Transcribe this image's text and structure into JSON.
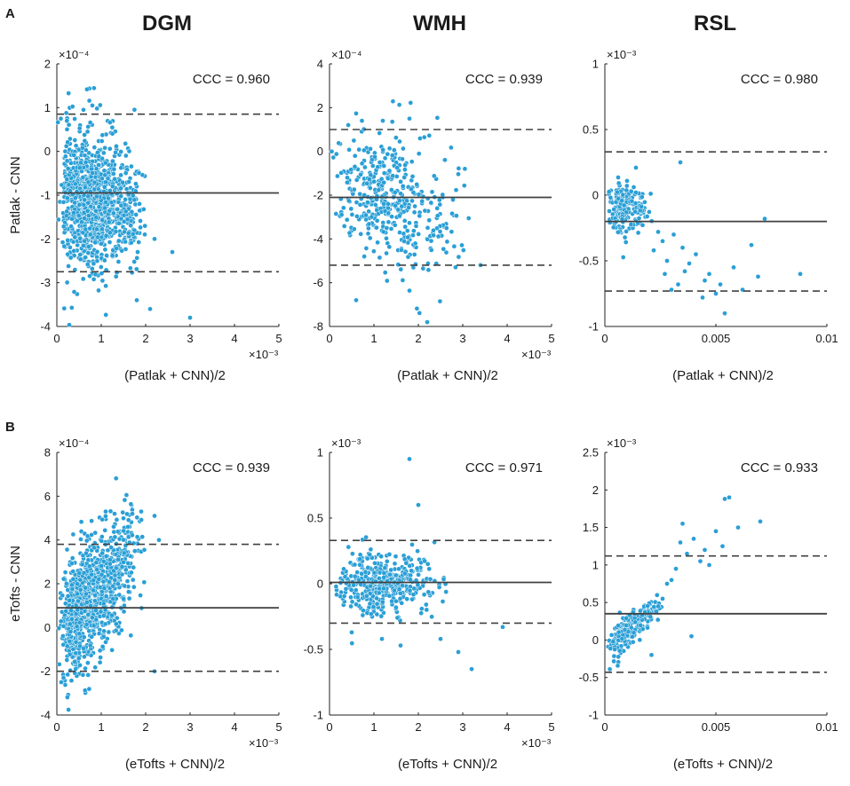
{
  "figure": {
    "columns": [
      "DGM",
      "WMH",
      "RSL"
    ],
    "rows": [
      "A",
      "B"
    ],
    "colors": {
      "point": "#2a9fd6",
      "point_edge": "#ffffff",
      "mean_line": "#404040",
      "limit_line": "#404040",
      "axis": "#222222"
    }
  },
  "chart_data": [
    {
      "id": "A-DGM",
      "row": "A",
      "column": "DGM",
      "type": "scatter",
      "title": "CCC = 0.960",
      "xlabel": "(Patlak + CNN)/2",
      "ylabel": "Patlak - CNN",
      "x_exponent": "×10⁻³",
      "y_exponent": "×10⁻⁴",
      "xlim": [
        0,
        5
      ],
      "ylim": [
        -4,
        2
      ],
      "xticks": [
        0,
        1,
        2,
        3,
        4,
        5
      ],
      "yticks": [
        -4,
        -3,
        -2,
        -1,
        0,
        1,
        2
      ],
      "xtick_labels": [
        "0",
        "1",
        "2",
        "3",
        "4",
        "5"
      ],
      "ytick_labels": [
        "-4",
        "-3",
        "-2",
        "-1",
        "0",
        "1",
        "2"
      ],
      "mean": -0.95,
      "upper_limit": 0.85,
      "lower_limit": -2.75,
      "cloud": {
        "n": 1100,
        "x_min": 0.02,
        "x_mode": 0.55,
        "x_max": 2.0,
        "y_center": -0.95,
        "y_spread": 0.75,
        "slope": -0.25,
        "seed": 11
      },
      "points": [
        [
          3.0,
          -3.8
        ],
        [
          2.6,
          -2.3
        ],
        [
          2.2,
          -2.0
        ],
        [
          0.8,
          1.05
        ],
        [
          0.6,
          0.95
        ],
        [
          2.1,
          -3.6
        ],
        [
          1.8,
          -3.4
        ]
      ]
    },
    {
      "id": "A-WMH",
      "row": "A",
      "column": "WMH",
      "type": "scatter",
      "title": "CCC = 0.939",
      "xlabel": "(Patlak + CNN)/2",
      "ylabel": "",
      "x_exponent": "×10⁻³",
      "y_exponent": "×10⁻⁴",
      "xlim": [
        0,
        5
      ],
      "ylim": [
        -8,
        4
      ],
      "xticks": [
        0,
        1,
        2,
        3,
        4,
        5
      ],
      "yticks": [
        -8,
        -6,
        -4,
        -2,
        0,
        2,
        4
      ],
      "xtick_labels": [
        "0",
        "1",
        "2",
        "3",
        "4",
        "5"
      ],
      "ytick_labels": [
        "-8",
        "-6",
        "-4",
        "-2",
        "0",
        "2",
        "4"
      ],
      "mean": -2.1,
      "upper_limit": 1.0,
      "lower_limit": -5.2,
      "cloud": {
        "n": 420,
        "x_min": 0.05,
        "x_mode": 1.1,
        "x_max": 3.2,
        "y_center": -1.4,
        "y_spread": 1.4,
        "slope": -0.7,
        "seed": 22
      },
      "points": [
        [
          1.8,
          1.5
        ],
        [
          1.2,
          1.4
        ],
        [
          2.2,
          -7.8
        ],
        [
          0.6,
          -6.8
        ],
        [
          3.4,
          -5.2
        ],
        [
          0.05,
          0.0
        ]
      ]
    },
    {
      "id": "A-RSL",
      "row": "A",
      "column": "RSL",
      "type": "scatter",
      "title": "CCC = 0.980",
      "xlabel": "(Patlak + CNN)/2",
      "ylabel": "",
      "x_exponent": "",
      "y_exponent": "×10⁻³",
      "xlim": [
        0,
        0.01
      ],
      "ylim": [
        -1,
        1
      ],
      "xticks": [
        0,
        0.005,
        0.01
      ],
      "yticks": [
        -1,
        -0.5,
        0,
        0.5,
        1
      ],
      "xtick_labels": [
        "0",
        "0.005",
        "0.01"
      ],
      "ytick_labels": [
        "-1",
        "-0.5",
        "0",
        "0.5",
        "1"
      ],
      "mean": -0.2,
      "upper_limit": 0.33,
      "lower_limit": -0.73,
      "cloud": {
        "n": 200,
        "x_min": 5e-05,
        "x_mode": 0.0007,
        "x_max": 0.0022,
        "y_center": -0.06,
        "y_spread": 0.09,
        "slope": -40,
        "seed": 33
      },
      "points": [
        [
          0.0034,
          0.25
        ],
        [
          0.0088,
          -0.6
        ],
        [
          0.0072,
          -0.18
        ],
        [
          0.0066,
          -0.38
        ],
        [
          0.0058,
          -0.55
        ],
        [
          0.0054,
          -0.9
        ],
        [
          0.005,
          -0.75
        ],
        [
          0.0045,
          -0.65
        ],
        [
          0.0041,
          -0.45
        ],
        [
          0.0036,
          -0.58
        ],
        [
          0.0033,
          -0.68
        ],
        [
          0.003,
          -0.72
        ],
        [
          0.0028,
          -0.5
        ],
        [
          0.0026,
          -0.35
        ],
        [
          0.0024,
          -0.28
        ],
        [
          0.0022,
          -0.42
        ],
        [
          0.0031,
          -0.3
        ],
        [
          0.0038,
          -0.52
        ],
        [
          0.0047,
          -0.6
        ],
        [
          0.0062,
          -0.72
        ],
        [
          0.0069,
          -0.62
        ],
        [
          0.0044,
          -0.78
        ],
        [
          0.0027,
          -0.6
        ],
        [
          0.0035,
          -0.4
        ],
        [
          0.0052,
          -0.68
        ]
      ]
    },
    {
      "id": "B-DGM",
      "row": "B",
      "column": "DGM",
      "type": "scatter",
      "title": "CCC = 0.939",
      "xlabel": "(eTofts + CNN)/2",
      "ylabel": "eTofts - CNN",
      "x_exponent": "×10⁻³",
      "y_exponent": "×10⁻⁴",
      "xlim": [
        0,
        5
      ],
      "ylim": [
        -4,
        8
      ],
      "xticks": [
        0,
        1,
        2,
        3,
        4,
        5
      ],
      "yticks": [
        -4,
        -2,
        0,
        2,
        4,
        6,
        8
      ],
      "xtick_labels": [
        "0",
        "1",
        "2",
        "3",
        "4",
        "5"
      ],
      "ytick_labels": [
        "-4",
        "-2",
        "0",
        "2",
        "4",
        "6",
        "8"
      ],
      "mean": 0.9,
      "upper_limit": 3.8,
      "lower_limit": -2.0,
      "cloud": {
        "n": 950,
        "x_min": 0.01,
        "x_mode": 0.45,
        "x_max": 2.0,
        "y_center": -0.2,
        "y_spread": 1.3,
        "slope": 2.0,
        "seed": 44
      },
      "points": [
        [
          2.3,
          4.0
        ],
        [
          2.2,
          5.1
        ],
        [
          1.9,
          5.3
        ],
        [
          1.7,
          5.2
        ],
        [
          1.3,
          5.2
        ],
        [
          1.1,
          5.3
        ],
        [
          0.1,
          -2.5
        ],
        [
          0.15,
          -2.3
        ],
        [
          2.2,
          -2.0
        ],
        [
          1.6,
          4.6
        ]
      ]
    },
    {
      "id": "B-WMH",
      "row": "B",
      "column": "WMH",
      "type": "scatter",
      "title": "CCC = 0.971",
      "xlabel": "(eTofts + CNN)/2",
      "ylabel": "",
      "x_exponent": "×10⁻³",
      "y_exponent": "×10⁻³",
      "xlim": [
        0,
        5
      ],
      "ylim": [
        -1,
        1
      ],
      "xticks": [
        0,
        1,
        2,
        3,
        4,
        5
      ],
      "yticks": [
        -1,
        -0.5,
        0,
        0.5,
        1
      ],
      "xtick_labels": [
        "0",
        "1",
        "2",
        "3",
        "4",
        "5"
      ],
      "ytick_labels": [
        "-1",
        "-0.5",
        "0",
        "0.5",
        "1"
      ],
      "mean": 0.01,
      "upper_limit": 0.33,
      "lower_limit": -0.3,
      "cloud": {
        "n": 400,
        "x_min": 0.05,
        "x_mode": 1.0,
        "x_max": 2.7,
        "y_center": 0.01,
        "y_spread": 0.12,
        "slope": 0.0,
        "seed": 55
      },
      "points": [
        [
          1.8,
          0.95
        ],
        [
          2.0,
          0.6
        ],
        [
          2.9,
          -0.52
        ],
        [
          3.2,
          -0.65
        ],
        [
          3.9,
          -0.33
        ],
        [
          0.5,
          -0.37
        ],
        [
          1.6,
          -0.47
        ],
        [
          2.5,
          -0.42
        ]
      ]
    },
    {
      "id": "B-RSL",
      "row": "B",
      "column": "RSL",
      "type": "scatter",
      "title": "CCC = 0.933",
      "xlabel": "(eTofts + CNN)/2",
      "ylabel": "",
      "x_exponent": "",
      "y_exponent": "×10⁻³",
      "xlim": [
        0,
        0.01
      ],
      "ylim": [
        -1,
        2.5
      ],
      "xticks": [
        0,
        0.005,
        0.01
      ],
      "yticks": [
        -1,
        -0.5,
        0,
        0.5,
        1,
        1.5,
        2,
        2.5
      ],
      "xtick_labels": [
        "0",
        "0.005",
        "0.01"
      ],
      "ytick_labels": [
        "-1",
        "-0.5",
        "0",
        "0.5",
        "1",
        "1.5",
        "2",
        "2.5"
      ],
      "mean": 0.35,
      "upper_limit": 1.12,
      "lower_limit": -0.43,
      "cloud": {
        "n": 200,
        "x_min": 5e-05,
        "x_mode": 0.0008,
        "x_max": 0.0026,
        "y_center": -0.1,
        "y_spread": 0.12,
        "slope": 230,
        "seed": 66
      },
      "points": [
        [
          0.007,
          1.58
        ],
        [
          0.0056,
          1.9
        ],
        [
          0.0054,
          1.88
        ],
        [
          0.0053,
          1.25
        ],
        [
          0.005,
          1.45
        ],
        [
          0.0045,
          1.2
        ],
        [
          0.0043,
          1.05
        ],
        [
          0.004,
          1.35
        ],
        [
          0.0037,
          1.15
        ],
        [
          0.0035,
          1.55
        ],
        [
          0.0034,
          1.3
        ],
        [
          0.003,
          0.8
        ],
        [
          0.0028,
          0.75
        ],
        [
          0.0039,
          0.05
        ],
        [
          0.0021,
          -0.2
        ],
        [
          0.0032,
          0.95
        ],
        [
          0.0047,
          1.0
        ],
        [
          0.006,
          1.5
        ],
        [
          0.0026,
          0.55
        ],
        [
          0.0024,
          0.45
        ]
      ]
    }
  ]
}
